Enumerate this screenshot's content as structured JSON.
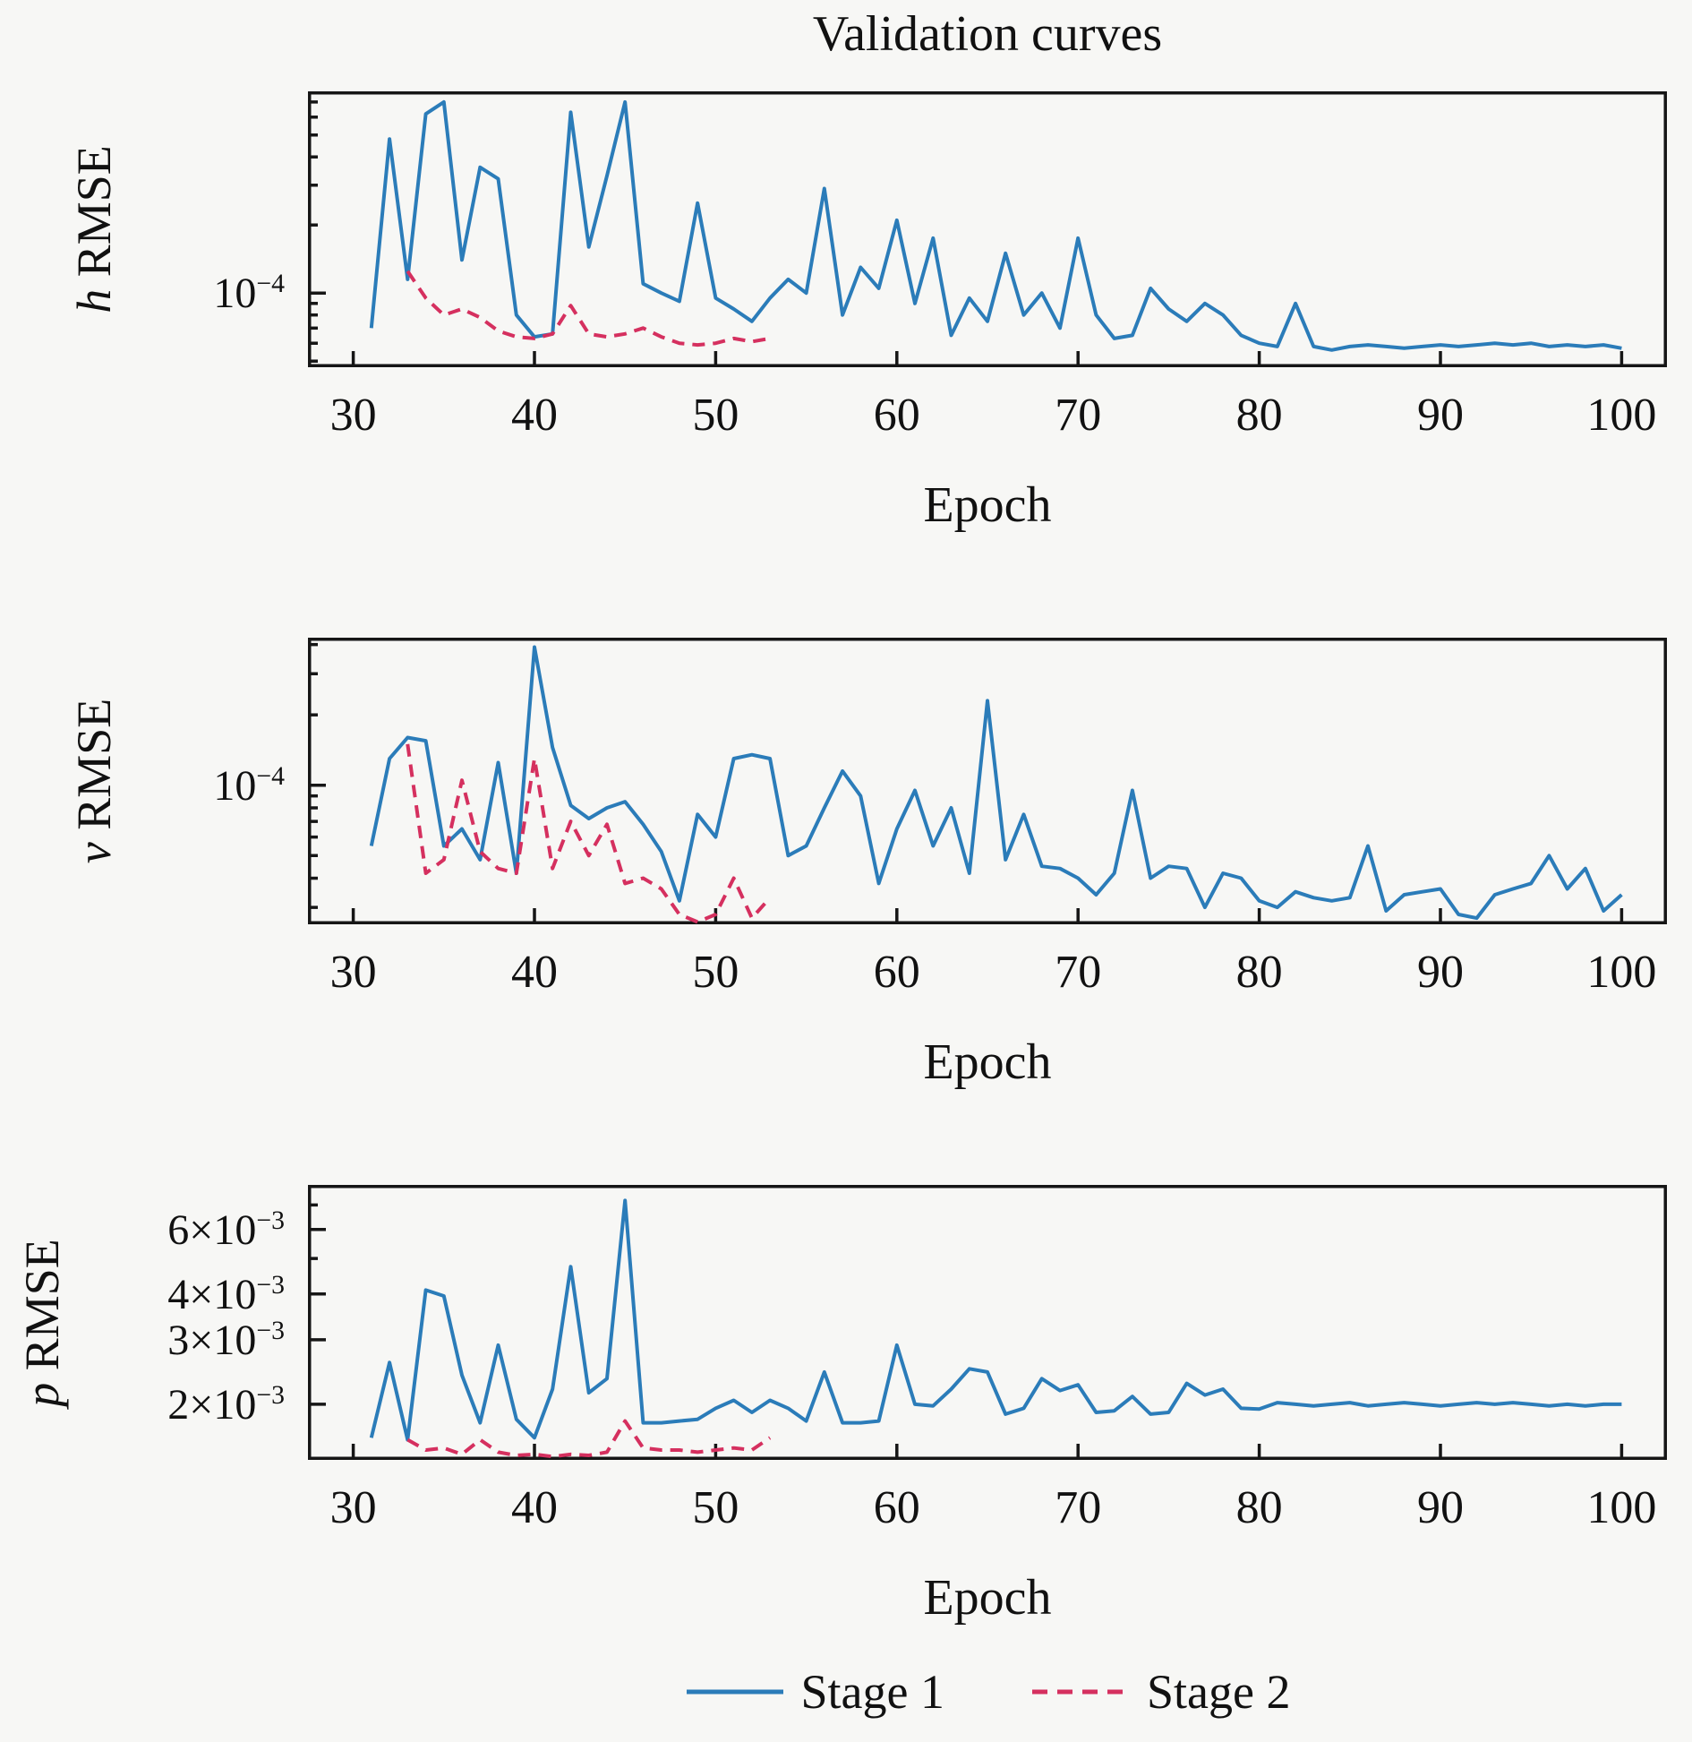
{
  "title": "Validation curves",
  "xlabel": "Epoch",
  "colors": {
    "stage1": "#2b7cb9",
    "stage2": "#d5305f",
    "axis": "#161616",
    "background": "#f7f7f5"
  },
  "legend": {
    "items": [
      {
        "label": "Stage 1",
        "style": "solid"
      },
      {
        "label": "Stage 2",
        "style": "dashed"
      }
    ]
  },
  "chart_data": [
    {
      "type": "line",
      "name": "h-rmse-panel",
      "ylabel": {
        "var": "h",
        "rest": " RMSE"
      },
      "xlabel": "Epoch",
      "yscale": "log",
      "grid": false,
      "xlim": [
        27.5,
        102.5
      ],
      "ylim": [
        4.7e-05,
        0.00078
      ],
      "xticks": [
        30,
        40,
        50,
        60,
        70,
        80,
        90,
        100
      ],
      "yticks_labeled": [
        {
          "value": 0.0001,
          "base": "10",
          "exp": "−4"
        }
      ],
      "series": [
        {
          "name": "Stage 1",
          "style": "solid",
          "x_start": 31,
          "x_step": 1,
          "x_end": 100,
          "values": [
            7e-05,
            0.00048,
            0.000115,
            0.00062,
            0.0007,
            0.00014,
            0.00036,
            0.00032,
            8e-05,
            6.4e-05,
            6.6e-05,
            0.00063,
            0.00016,
            0.00033,
            0.0007,
            0.00011,
            0.0001,
            9.2e-05,
            0.00025,
            9.5e-05,
            8.5e-05,
            7.5e-05,
            9.5e-05,
            0.000115,
            0.0001,
            0.00029,
            8e-05,
            0.00013,
            0.000105,
            0.00021,
            9e-05,
            0.000175,
            6.5e-05,
            9.5e-05,
            7.5e-05,
            0.00015,
            8e-05,
            0.0001,
            7e-05,
            0.000175,
            8e-05,
            6.3e-05,
            6.5e-05,
            0.000105,
            8.5e-05,
            7.5e-05,
            9e-05,
            8e-05,
            6.5e-05,
            6e-05,
            5.8e-05,
            9e-05,
            5.8e-05,
            5.6e-05,
            5.8e-05,
            5.9e-05,
            5.8e-05,
            5.7e-05,
            5.8e-05,
            5.9e-05,
            5.8e-05,
            5.9e-05,
            6e-05,
            5.9e-05,
            6e-05,
            5.8e-05,
            5.9e-05,
            5.8e-05,
            5.9e-05,
            5.7e-05
          ]
        },
        {
          "name": "Stage 2",
          "style": "dashed",
          "x_start": 33,
          "x_step": 1,
          "x_end": 53,
          "values": [
            0.000125,
            9.5e-05,
            8e-05,
            8.5e-05,
            7.8e-05,
            6.8e-05,
            6.4e-05,
            6.3e-05,
            6.6e-05,
            8.8e-05,
            6.6e-05,
            6.4e-05,
            6.6e-05,
            7e-05,
            6.4e-05,
            6e-05,
            5.9e-05,
            6e-05,
            6.3e-05,
            6.1e-05,
            6.3e-05
          ]
        }
      ]
    },
    {
      "type": "line",
      "name": "v-rmse-panel",
      "ylabel": {
        "var": "v",
        "rest": " RMSE"
      },
      "xlabel": "Epoch",
      "yscale": "log",
      "grid": false,
      "xlim": [
        27.5,
        102.5
      ],
      "ylim": [
        2.54e-05,
        0.000428
      ],
      "xticks": [
        30,
        40,
        50,
        60,
        70,
        80,
        90,
        100
      ],
      "yticks_labeled": [
        {
          "value": 0.0001,
          "base": "10",
          "exp": "−4"
        }
      ],
      "series": [
        {
          "name": "Stage 1",
          "style": "solid",
          "x_start": 31,
          "x_step": 1,
          "x_end": 100,
          "values": [
            5.5e-05,
            0.00013,
            0.00016,
            0.000155,
            5.5e-05,
            6.5e-05,
            4.8e-05,
            0.000125,
            4.2e-05,
            0.00039,
            0.000145,
            8.2e-05,
            7.2e-05,
            8e-05,
            8.5e-05,
            6.8e-05,
            5.2e-05,
            3.2e-05,
            7.5e-05,
            6e-05,
            0.00013,
            0.000135,
            0.00013,
            5e-05,
            5.5e-05,
            8e-05,
            0.000115,
            9e-05,
            3.8e-05,
            6.5e-05,
            9.5e-05,
            5.5e-05,
            8e-05,
            4.2e-05,
            0.00023,
            4.8e-05,
            7.5e-05,
            4.5e-05,
            4.4e-05,
            4e-05,
            3.4e-05,
            4.2e-05,
            9.5e-05,
            4e-05,
            4.5e-05,
            4.4e-05,
            3e-05,
            4.2e-05,
            4e-05,
            3.2e-05,
            3e-05,
            3.5e-05,
            3.3e-05,
            3.2e-05,
            3.3e-05,
            5.5e-05,
            2.9e-05,
            3.4e-05,
            3.5e-05,
            3.6e-05,
            2.8e-05,
            2.7e-05,
            3.4e-05,
            3.6e-05,
            3.8e-05,
            5e-05,
            3.6e-05,
            4.4e-05,
            2.9e-05,
            3.4e-05
          ]
        },
        {
          "name": "Stage 2",
          "style": "dashed",
          "x_start": 33,
          "x_step": 1,
          "x_end": 53,
          "values": [
            0.00015,
            4.2e-05,
            4.8e-05,
            0.000105,
            5.2e-05,
            4.4e-05,
            4.2e-05,
            0.00013,
            4.4e-05,
            7e-05,
            5e-05,
            6.8e-05,
            3.8e-05,
            4e-05,
            3.6e-05,
            2.8e-05,
            2.6e-05,
            2.8e-05,
            4e-05,
            2.7e-05,
            3.3e-05
          ]
        }
      ]
    },
    {
      "type": "line",
      "name": "p-rmse-panel",
      "ylabel": {
        "var": "p",
        "rest": " RMSE"
      },
      "xlabel": "Epoch",
      "yscale": "log",
      "grid": false,
      "xlim": [
        27.5,
        102.5
      ],
      "ylim": [
        0.00141,
        0.00794
      ],
      "xticks": [
        30,
        40,
        50,
        60,
        70,
        80,
        90,
        100
      ],
      "yticks_labeled": [
        {
          "value": 0.006,
          "base": "6×10",
          "exp": "−3"
        },
        {
          "value": 0.004,
          "base": "4×10",
          "exp": "−3"
        },
        {
          "value": 0.003,
          "base": "3×10",
          "exp": "−3"
        },
        {
          "value": 0.002,
          "base": "2×10",
          "exp": "−3"
        }
      ],
      "series": [
        {
          "name": "Stage 1",
          "style": "solid",
          "x_start": 31,
          "x_step": 1,
          "x_end": 100,
          "values": [
            0.00162,
            0.0026,
            0.0016,
            0.0041,
            0.00395,
            0.0024,
            0.00178,
            0.0029,
            0.00182,
            0.00162,
            0.0022,
            0.00475,
            0.00215,
            0.00235,
            0.0072,
            0.00178,
            0.00178,
            0.0018,
            0.00182,
            0.00195,
            0.00205,
            0.0019,
            0.00205,
            0.00195,
            0.0018,
            0.00245,
            0.00178,
            0.00178,
            0.0018,
            0.0029,
            0.002,
            0.00198,
            0.0022,
            0.0025,
            0.00245,
            0.00188,
            0.00195,
            0.00235,
            0.00218,
            0.00226,
            0.0019,
            0.00192,
            0.0021,
            0.00188,
            0.0019,
            0.00228,
            0.00212,
            0.0022,
            0.00195,
            0.00194,
            0.00202,
            0.002,
            0.00198,
            0.002,
            0.00202,
            0.00198,
            0.002,
            0.00202,
            0.002,
            0.00198,
            0.002,
            0.00202,
            0.002,
            0.00202,
            0.002,
            0.00198,
            0.002,
            0.00198,
            0.002,
            0.002
          ]
        },
        {
          "name": "Stage 2",
          "style": "dashed",
          "x_start": 33,
          "x_step": 1,
          "x_end": 53,
          "values": [
            0.0016,
            0.0015,
            0.00152,
            0.00146,
            0.0016,
            0.00148,
            0.00145,
            0.00146,
            0.00144,
            0.00146,
            0.00145,
            0.00148,
            0.0018,
            0.00152,
            0.0015,
            0.0015,
            0.00148,
            0.0015,
            0.00152,
            0.0015,
            0.00162
          ]
        }
      ]
    }
  ]
}
